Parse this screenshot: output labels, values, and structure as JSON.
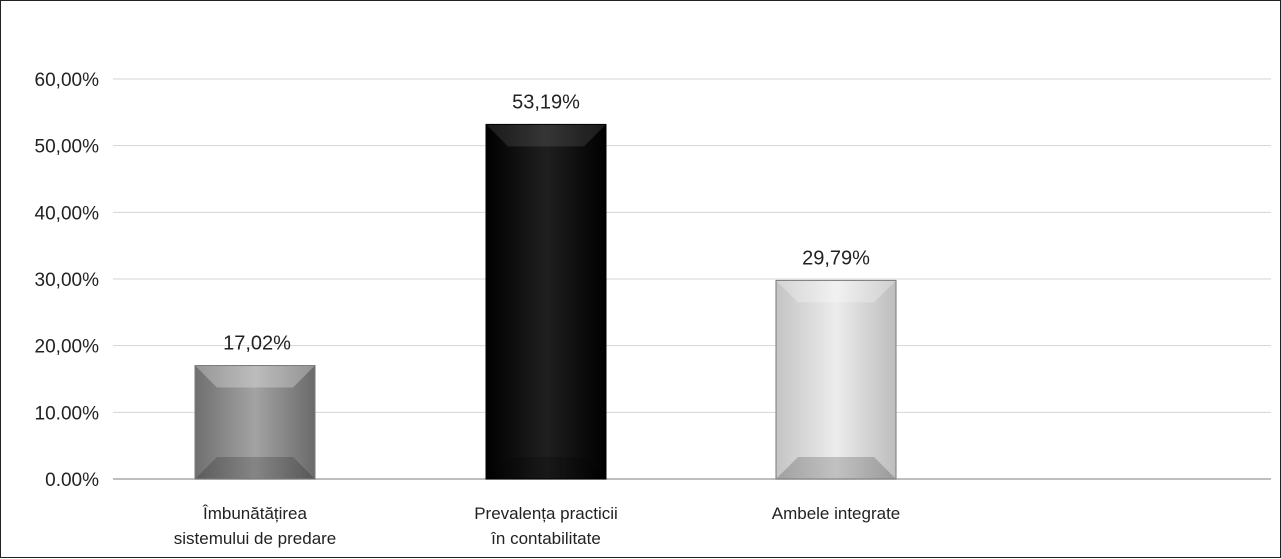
{
  "chart_data": {
    "type": "bar",
    "title": "",
    "xlabel": "",
    "ylabel": "",
    "categories": [
      [
        "Îmbunătățirea",
        "sistemului de predare"
      ],
      [
        "Prevalența practicii",
        "în contabilitate"
      ],
      [
        "Ambele integrate"
      ]
    ],
    "values": [
      17.02,
      53.19,
      29.79
    ],
    "value_labels": [
      "17,02%",
      "53,19%",
      "29,79%"
    ],
    "ytick_values": [
      0,
      10,
      20,
      30,
      40,
      50,
      60
    ],
    "ytick_labels": [
      "0.00%",
      "10.00%",
      "20,00%",
      "30,00%",
      "40,00%",
      "50,00%",
      "60,00%"
    ],
    "ylim": [
      0,
      60
    ],
    "grid": true,
    "bar_colors": [
      "#8f8f8f",
      "#0d0d0d",
      "#d6d6d6"
    ]
  }
}
